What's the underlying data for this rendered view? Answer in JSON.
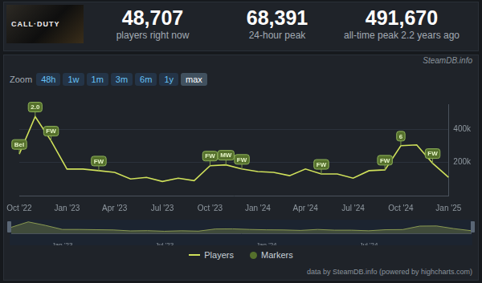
{
  "header": {
    "image_text": "CALL·DUTY",
    "stats": [
      {
        "value": "48,707",
        "label": "players right now"
      },
      {
        "value": "68,391",
        "label": "24-hour peak"
      },
      {
        "value": "491,670",
        "label": "all-time peak 2.2 years ago"
      }
    ],
    "source": "SteamDB.info"
  },
  "zoom": {
    "label": "Zoom",
    "options": [
      "48h",
      "1w",
      "1m",
      "3m",
      "6m",
      "1y",
      "max"
    ],
    "selected": "max"
  },
  "chart_data": [
    {
      "type": "line",
      "categories": [
        "Oct '22",
        null,
        null,
        "Jan '23",
        null,
        null,
        "Apr '23",
        null,
        null,
        "Jul '23",
        null,
        null,
        "Oct '23",
        null,
        null,
        "Jan '24",
        null,
        null,
        "Apr '24",
        null,
        null,
        "Jul '24",
        null,
        null,
        "Oct '24",
        null,
        null,
        "Jan '25"
      ],
      "series": [
        {
          "name": "Players",
          "color": "#cfe05a",
          "values": [
            250000,
            475000,
            330000,
            160000,
            160000,
            150000,
            140000,
            100000,
            110000,
            85000,
            105000,
            90000,
            180000,
            185000,
            160000,
            145000,
            140000,
            120000,
            160000,
            130000,
            130000,
            105000,
            150000,
            155000,
            300000,
            305000,
            195000,
            110000
          ]
        }
      ],
      "markers": {
        "name": "Markers",
        "color": "#55702c",
        "items": [
          {
            "x": 0,
            "label": "Bel"
          },
          {
            "x": 1,
            "label": "2.0"
          },
          {
            "x": 2,
            "label": "FW"
          },
          {
            "x": 5,
            "label": "FW"
          },
          {
            "x": 12,
            "label": "FW"
          },
          {
            "x": 13,
            "label": "MW"
          },
          {
            "x": 14,
            "label": "FW"
          },
          {
            "x": 19,
            "label": "FW"
          },
          {
            "x": 23,
            "label": "FW"
          },
          {
            "x": 24,
            "label": "6"
          },
          {
            "x": 26,
            "label": "FW"
          }
        ]
      },
      "ylim": [
        0,
        550000
      ],
      "yticks": [
        {
          "value": 200000,
          "label": "200k"
        },
        {
          "value": 400000,
          "label": "400k"
        }
      ],
      "grid": true,
      "legend": "bottom"
    },
    {
      "type": "area",
      "categories": [
        null,
        null,
        null,
        "Jan '23",
        null,
        null,
        null,
        null,
        null,
        "Jul '23",
        null,
        null,
        null,
        null,
        null,
        "Jan '24",
        null,
        null,
        null,
        null,
        null,
        "Jul '24",
        null,
        null,
        null,
        null,
        null,
        null
      ],
      "series": [
        {
          "name": "Players",
          "color": "#8a9a52",
          "values": [
            250000,
            475000,
            330000,
            160000,
            160000,
            150000,
            140000,
            100000,
            110000,
            85000,
            105000,
            90000,
            180000,
            185000,
            160000,
            145000,
            140000,
            120000,
            160000,
            130000,
            130000,
            105000,
            150000,
            155000,
            300000,
            305000,
            195000,
            110000
          ]
        }
      ],
      "ylim": [
        0,
        500000
      ],
      "grid": false,
      "tick_labels": "x"
    }
  ],
  "footer": "data by SteamDB.info (powered by highcharts.com)"
}
